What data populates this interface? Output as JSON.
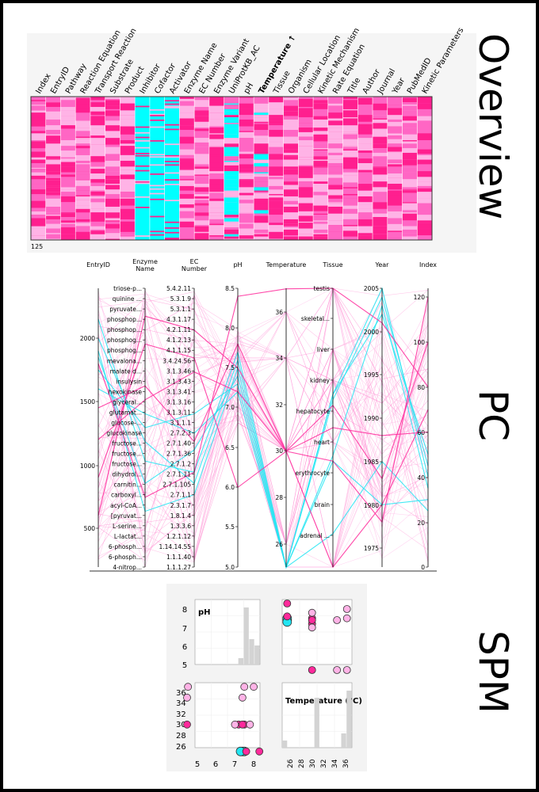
{
  "overview": {
    "title": "Overview",
    "count_label": "125",
    "columns": [
      "Index",
      "EntryID",
      "Pathway",
      "Reaction Equation",
      "Transport Reaction",
      "Substrate",
      "Product",
      "Inhibitor",
      "Cofactor",
      "Activator",
      "Enzyme Name",
      "EC Number",
      "Enzyme Variant",
      "UniProtKB_AC",
      "pH",
      "Temperature ↑",
      "Tissue",
      "Organism",
      "Cellular Location",
      "Kinetic Mechanism",
      "Rate Equation",
      "Title",
      "Author",
      "Journal",
      "Year",
      "PubMedID",
      "Kinetic Parameters"
    ],
    "sorted_column": "Temperature ↑",
    "colors": {
      "pink": "#ff1f8f",
      "light": "#ffb3e6",
      "cyan": "#00ffff",
      "mid": "#ff66c4"
    }
  },
  "pc": {
    "title": "PC",
    "axes": [
      {
        "name": "EntryID",
        "label": [
          "EntryID"
        ],
        "ticks": [
          "2000",
          "1500",
          "1000",
          "500"
        ]
      },
      {
        "name": "Enzyme Name",
        "label": [
          "Enzyme",
          "Name"
        ],
        "ticks": [
          "triose-p...",
          "quinine ...",
          "pyruvate...",
          "phosphop...",
          "phosphop...",
          "phosphog...",
          "phosphog...",
          "mevalona...",
          "malate d...",
          "insulysin",
          "hexokinase",
          "glyceral...",
          "glutamat...",
          "glucose-...",
          "glucokinase",
          "fructose...",
          "fructose...",
          "fructose...",
          "dihydrol...",
          "carnitin...",
          "carboxyl...",
          "acyl-CoA...",
          "[pyruvat...",
          "L-serine...",
          "L-lactat...",
          "6-phosph...",
          "6-phosph...",
          "4-nitrop..."
        ]
      },
      {
        "name": "EC Number",
        "label": [
          "EC",
          "Number"
        ],
        "ticks": [
          "5.4.2.11",
          "5.3.1.9",
          "5.3.1.1",
          "4.3.1.17",
          "4.2.1.11",
          "4.1.2.13",
          "4.1.1.15",
          "3.4.24.56",
          "3.1.3.46",
          "3.1.3.43",
          "3.1.3.41",
          "3.1.3.16",
          "3.1.3.11",
          "3.1.1.1",
          "2.7.2.3",
          "2.7.1.40",
          "2.7.1.36",
          "2.7.1.2",
          "2.7.1.11",
          "2.7.1.105",
          "2.7.1.1",
          "2.3.1.7",
          "1.8.1.4",
          "1.3.3.6",
          "1.2.1.12",
          "1.14.14.55",
          "1.1.1.40",
          "1.1.1.27"
        ]
      },
      {
        "name": "pH",
        "label": [
          "pH"
        ],
        "ticks": [
          "8.5",
          "8.0",
          "7.5",
          "7.0",
          "6.5",
          "6.0",
          "5.5",
          "5.0"
        ]
      },
      {
        "name": "Temperature",
        "label": [
          "Temperature"
        ],
        "ticks": [
          "36",
          "34",
          "32",
          "30",
          "28",
          "26"
        ]
      },
      {
        "name": "Tissue",
        "label": [
          "Tissue"
        ],
        "ticks": [
          "testis",
          "skeletal...",
          "liver",
          "kidney",
          "hepatocyte",
          "heart",
          "erythrocyte",
          "brain",
          "adrenal ..."
        ]
      },
      {
        "name": "Year",
        "label": [
          "Year"
        ],
        "ticks": [
          "2005",
          "2000",
          "1995",
          "1990",
          "1985",
          "1980",
          "1975"
        ]
      },
      {
        "name": "Index",
        "label": [
          "Index"
        ],
        "ticks": [
          "120",
          "100",
          "80",
          "60",
          "40",
          "20",
          "0"
        ]
      }
    ]
  },
  "spm": {
    "title": "SPM",
    "ph_label": "pH",
    "temp_label": "Temperature (°C)",
    "ph_ticks": [
      "8",
      "7",
      "6",
      "5"
    ],
    "ph_x_ticks": [
      "5",
      "6",
      "7",
      "8"
    ],
    "temp_ticks": [
      "36",
      "34",
      "32",
      "30",
      "28",
      "26"
    ],
    "temp_x_ticks": [
      "26",
      "28",
      "30",
      "32",
      "34",
      "36"
    ]
  },
  "chart_data": [
    {
      "type": "heatmap",
      "title": "Overview",
      "columns": [
        "Index",
        "EntryID",
        "Pathway",
        "Reaction Equation",
        "Transport Reaction",
        "Substrate",
        "Product",
        "Inhibitor",
        "Cofactor",
        "Activator",
        "Enzyme Name",
        "EC Number",
        "Enzyme Variant",
        "UniProtKB_AC",
        "pH",
        "Temperature ↑",
        "Tissue",
        "Organism",
        "Cellular Location",
        "Kinetic Mechanism",
        "Rate Equation",
        "Title",
        "Author",
        "Journal",
        "Year",
        "PubMedID",
        "Kinetic Parameters"
      ],
      "rows": 125
    },
    {
      "type": "parallel_coordinates",
      "title": "PC",
      "axes": [
        "EntryID",
        "Enzyme Name",
        "EC Number",
        "pH",
        "Temperature",
        "Tissue",
        "Year",
        "Index"
      ],
      "series": [
        {
          "color": "cyan",
          "values": [
            [
              1900,
              0.8,
              0.74,
              7.5,
              25,
              0.88,
              1985,
              25
            ],
            [
              1750,
              0.5,
              0.45,
              7.3,
              25,
              0.62,
              1980,
              30
            ],
            [
              2150,
              0.62,
              0.66,
              7.7,
              25,
              0.38,
              2005,
              40
            ],
            [
              1850,
              0.7,
              0.58,
              7.4,
              25,
              0.4,
              2004,
              45
            ],
            [
              1600,
              0.45,
              0.52,
              7.2,
              25,
              0.6,
              2003,
              35
            ],
            [
              2000,
              0.55,
              0.7,
              7.6,
              25,
              0.38,
              2002,
              50
            ]
          ]
        },
        {
          "color": "pink",
          "values": [
            [
              1800,
              0.75,
              0.66,
              8.4,
              37,
              0.0,
              2001,
              80
            ],
            [
              1200,
              0.4,
              0.3,
              7.2,
              30,
              0.62,
              1978,
              120
            ],
            [
              900,
              0.2,
              0.25,
              6.0,
              30,
              0.42,
              1983,
              100
            ],
            [
              600,
              0.1,
              0.15,
              7.5,
              30,
              1.0,
              1980,
              70
            ],
            [
              1450,
              0.35,
              0.55,
              7.8,
              30,
              0.5,
              1988,
              60
            ]
          ]
        }
      ]
    },
    {
      "type": "scatter",
      "title": "SPM",
      "dimensions": [
        "pH",
        "Temperature (°C)"
      ],
      "points": [
        {
          "pH": 7.4,
          "temp": 25,
          "color": "cyan"
        },
        {
          "pH": 7.5,
          "temp": 25,
          "color": "cyan"
        },
        {
          "pH": 7.3,
          "temp": 25,
          "color": "cyan"
        },
        {
          "pH": 7.6,
          "temp": 25,
          "color": "pink"
        },
        {
          "pH": 8.3,
          "temp": 25,
          "color": "pink"
        },
        {
          "pH": 7.2,
          "temp": 30,
          "color": "pink"
        },
        {
          "pH": 7.5,
          "temp": 30,
          "color": "pink"
        },
        {
          "pH": 7.0,
          "temp": 30,
          "color": "light"
        },
        {
          "pH": 7.8,
          "temp": 30,
          "color": "light"
        },
        {
          "pH": 7.4,
          "temp": 30,
          "color": "pink"
        },
        {
          "pH": 4.0,
          "temp": 30,
          "color": "pink"
        },
        {
          "pH": 7.4,
          "temp": 35,
          "color": "light"
        },
        {
          "pH": 4.0,
          "temp": 35,
          "color": "light"
        },
        {
          "pH": 7.5,
          "temp": 37,
          "color": "light"
        },
        {
          "pH": 8.0,
          "temp": 37,
          "color": "light"
        },
        {
          "pH": 4.5,
          "temp": 37,
          "color": "light"
        }
      ],
      "ph_histogram": [
        0,
        0,
        0,
        0,
        0,
        0,
        0,
        0,
        1,
        9,
        4,
        3
      ],
      "temp_histogram": [
        1,
        0,
        0,
        0,
        0,
        0,
        7,
        0,
        0,
        0,
        0,
        2,
        8
      ]
    }
  ]
}
